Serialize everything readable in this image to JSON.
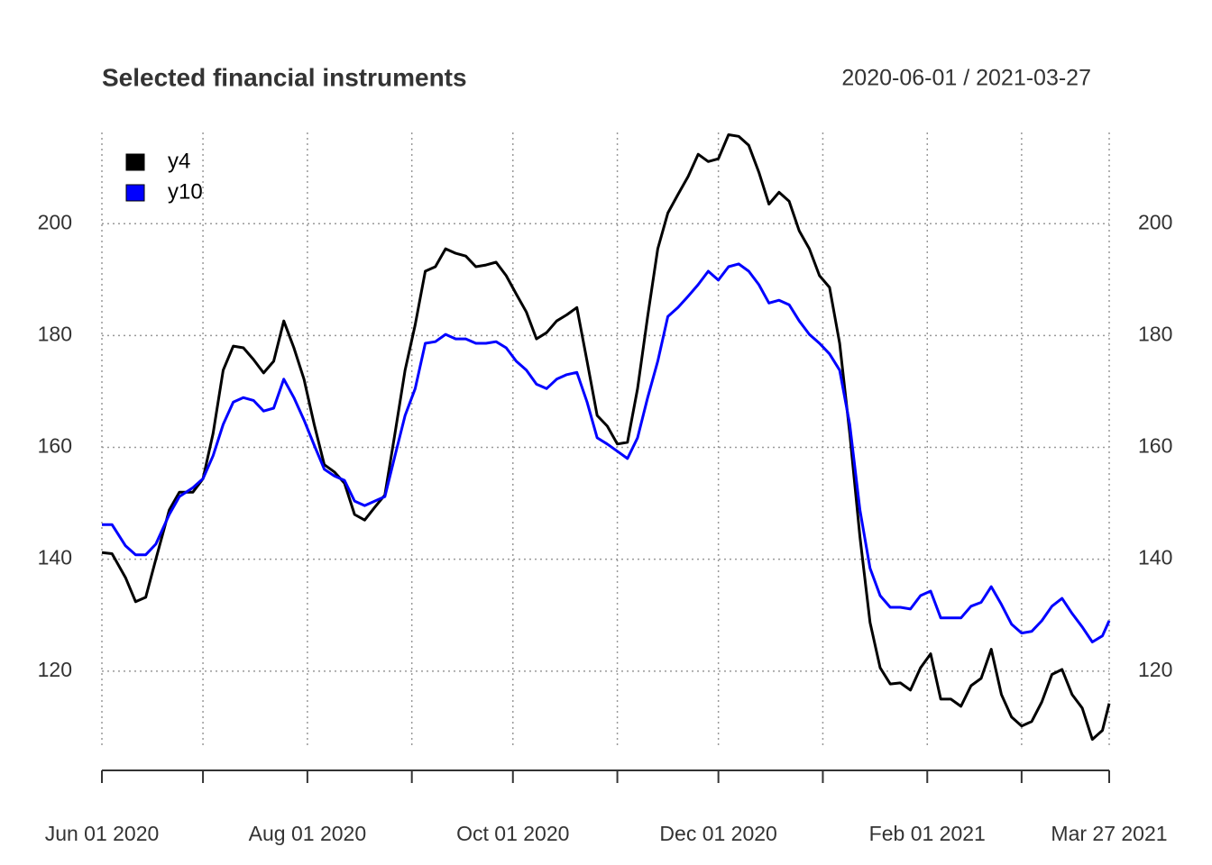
{
  "chart_data": {
    "type": "line",
    "title": "Selected financial instruments",
    "subtitle": "2020-06-01 / 2021-03-27",
    "x": [
      "2020-06-01",
      "2020-06-04",
      "2020-06-08",
      "2020-06-11",
      "2020-06-14",
      "2020-06-17",
      "2020-06-21",
      "2020-06-24",
      "2020-06-28",
      "2020-07-01",
      "2020-07-04",
      "2020-07-07",
      "2020-07-10",
      "2020-07-13",
      "2020-07-16",
      "2020-07-19",
      "2020-07-22",
      "2020-07-25",
      "2020-07-28",
      "2020-07-31",
      "2020-08-03",
      "2020-08-06",
      "2020-08-09",
      "2020-08-12",
      "2020-08-15",
      "2020-08-18",
      "2020-08-21",
      "2020-08-24",
      "2020-08-27",
      "2020-08-30",
      "2020-09-02",
      "2020-09-05",
      "2020-09-08",
      "2020-09-11",
      "2020-09-14",
      "2020-09-17",
      "2020-09-20",
      "2020-09-23",
      "2020-09-26",
      "2020-09-29",
      "2020-10-02",
      "2020-10-05",
      "2020-10-08",
      "2020-10-11",
      "2020-10-14",
      "2020-10-17",
      "2020-10-20",
      "2020-10-23",
      "2020-10-26",
      "2020-10-29",
      "2020-11-01",
      "2020-11-04",
      "2020-11-07",
      "2020-11-10",
      "2020-11-13",
      "2020-11-16",
      "2020-11-19",
      "2020-11-22",
      "2020-11-25",
      "2020-11-28",
      "2020-12-01",
      "2020-12-04",
      "2020-12-07",
      "2020-12-10",
      "2020-12-13",
      "2020-12-16",
      "2020-12-19",
      "2020-12-22",
      "2020-12-25",
      "2020-12-28",
      "2020-12-31",
      "2021-01-03",
      "2021-01-06",
      "2021-01-09",
      "2021-01-12",
      "2021-01-15",
      "2021-01-18",
      "2021-01-21",
      "2021-01-24",
      "2021-01-27",
      "2021-01-30",
      "2021-02-02",
      "2021-02-05",
      "2021-02-08",
      "2021-02-11",
      "2021-02-14",
      "2021-02-17",
      "2021-02-20",
      "2021-02-23",
      "2021-02-26",
      "2021-03-01",
      "2021-03-04",
      "2021-03-07",
      "2021-03-10",
      "2021-03-13",
      "2021-03-16",
      "2021-03-19",
      "2021-03-22",
      "2021-03-25",
      "2021-03-27"
    ],
    "series": [
      {
        "name": "y4",
        "color": "#000000",
        "values": [
          141.2,
          141,
          136.7,
          132.4,
          133.2,
          140,
          148.8,
          152,
          152,
          154.4,
          162.5,
          173.8,
          178.1,
          177.8,
          175.7,
          173.3,
          175.4,
          182.6,
          177.8,
          172.2,
          164.1,
          156.9,
          155.6,
          153.6,
          148,
          147,
          149.3,
          151.5,
          162.5,
          173.8,
          181.9,
          191.5,
          192.3,
          195.5,
          194.7,
          194.2,
          192.3,
          192.6,
          193.1,
          190.7,
          187.4,
          184.2,
          179.4,
          180.5,
          182.6,
          183.7,
          185,
          175.4,
          165.7,
          163.8,
          160.6,
          160.9,
          170.5,
          183.4,
          195.5,
          201.9,
          205.2,
          208.4,
          212.4,
          211.1,
          211.6,
          215.9,
          215.6,
          214,
          209.2,
          203.5,
          205.6,
          204,
          198.7,
          195.5,
          190.7,
          188.6,
          178.6,
          162.5,
          144,
          128.7,
          120.6,
          117.7,
          117.9,
          116.6,
          120.6,
          123.1,
          115,
          115,
          113.7,
          117.4,
          118.7,
          123.9,
          115.8,
          111.8,
          110.2,
          111,
          114.5,
          119.4,
          120.3,
          115.8,
          113.4,
          107.8,
          109.4,
          114.2
        ]
      },
      {
        "name": "y10",
        "color": "#0000ff",
        "values": [
          146.2,
          146.2,
          142.4,
          140.8,
          140.8,
          142.7,
          148,
          151.2,
          152.8,
          154.4,
          158.5,
          164.1,
          168.1,
          168.9,
          168.4,
          166.5,
          167,
          172.2,
          168.9,
          164.9,
          160.4,
          156.1,
          154.9,
          154.1,
          150.4,
          149.6,
          150.4,
          151.2,
          158.5,
          165.7,
          170.5,
          178.6,
          178.9,
          180.2,
          179.4,
          179.4,
          178.6,
          178.6,
          178.9,
          177.8,
          175.4,
          173.8,
          171.3,
          170.5,
          172.2,
          173,
          173.4,
          168.1,
          161.7,
          160.6,
          159.3,
          158,
          161.7,
          168.9,
          175.4,
          183.4,
          185,
          187,
          189.1,
          191.5,
          189.9,
          192.3,
          192.8,
          191.5,
          189.1,
          185.8,
          186.3,
          185.5,
          182.6,
          180.2,
          178.6,
          176.7,
          173.8,
          164.1,
          148.8,
          138.4,
          133.5,
          131.4,
          131.4,
          131.1,
          133.5,
          134.3,
          129.5,
          129.5,
          129.5,
          131.6,
          132.3,
          135.1,
          131.9,
          128.4,
          126.8,
          127.1,
          129,
          131.6,
          133,
          130.3,
          127.9,
          125.2,
          126.3,
          129
        ]
      }
    ],
    "xlim": [
      "2020-06-01",
      "2021-03-27"
    ],
    "xticks": [
      {
        "value": "2020-06-01",
        "label": "Jun 01 2020"
      },
      {
        "value": "2020-08-01",
        "label": "Aug 01 2020"
      },
      {
        "value": "2020-10-01",
        "label": "Oct 01 2020"
      },
      {
        "value": "2020-12-01",
        "label": "Dec 01 2020"
      },
      {
        "value": "2021-02-01",
        "label": "Feb 01 2021"
      },
      {
        "value": "2021-03-27",
        "label": "Mar 27 2021"
      }
    ],
    "xgrid": [
      "2020-06-01",
      "2020-07-01",
      "2020-08-01",
      "2020-09-01",
      "2020-10-01",
      "2020-11-01",
      "2020-12-01",
      "2021-01-01",
      "2021-02-01",
      "2021-03-01",
      "2021-03-27"
    ],
    "ylim": [
      106.6,
      216.3
    ],
    "yticks": [
      120,
      140,
      160,
      180,
      200
    ],
    "grid": true,
    "legend": "top-left"
  }
}
